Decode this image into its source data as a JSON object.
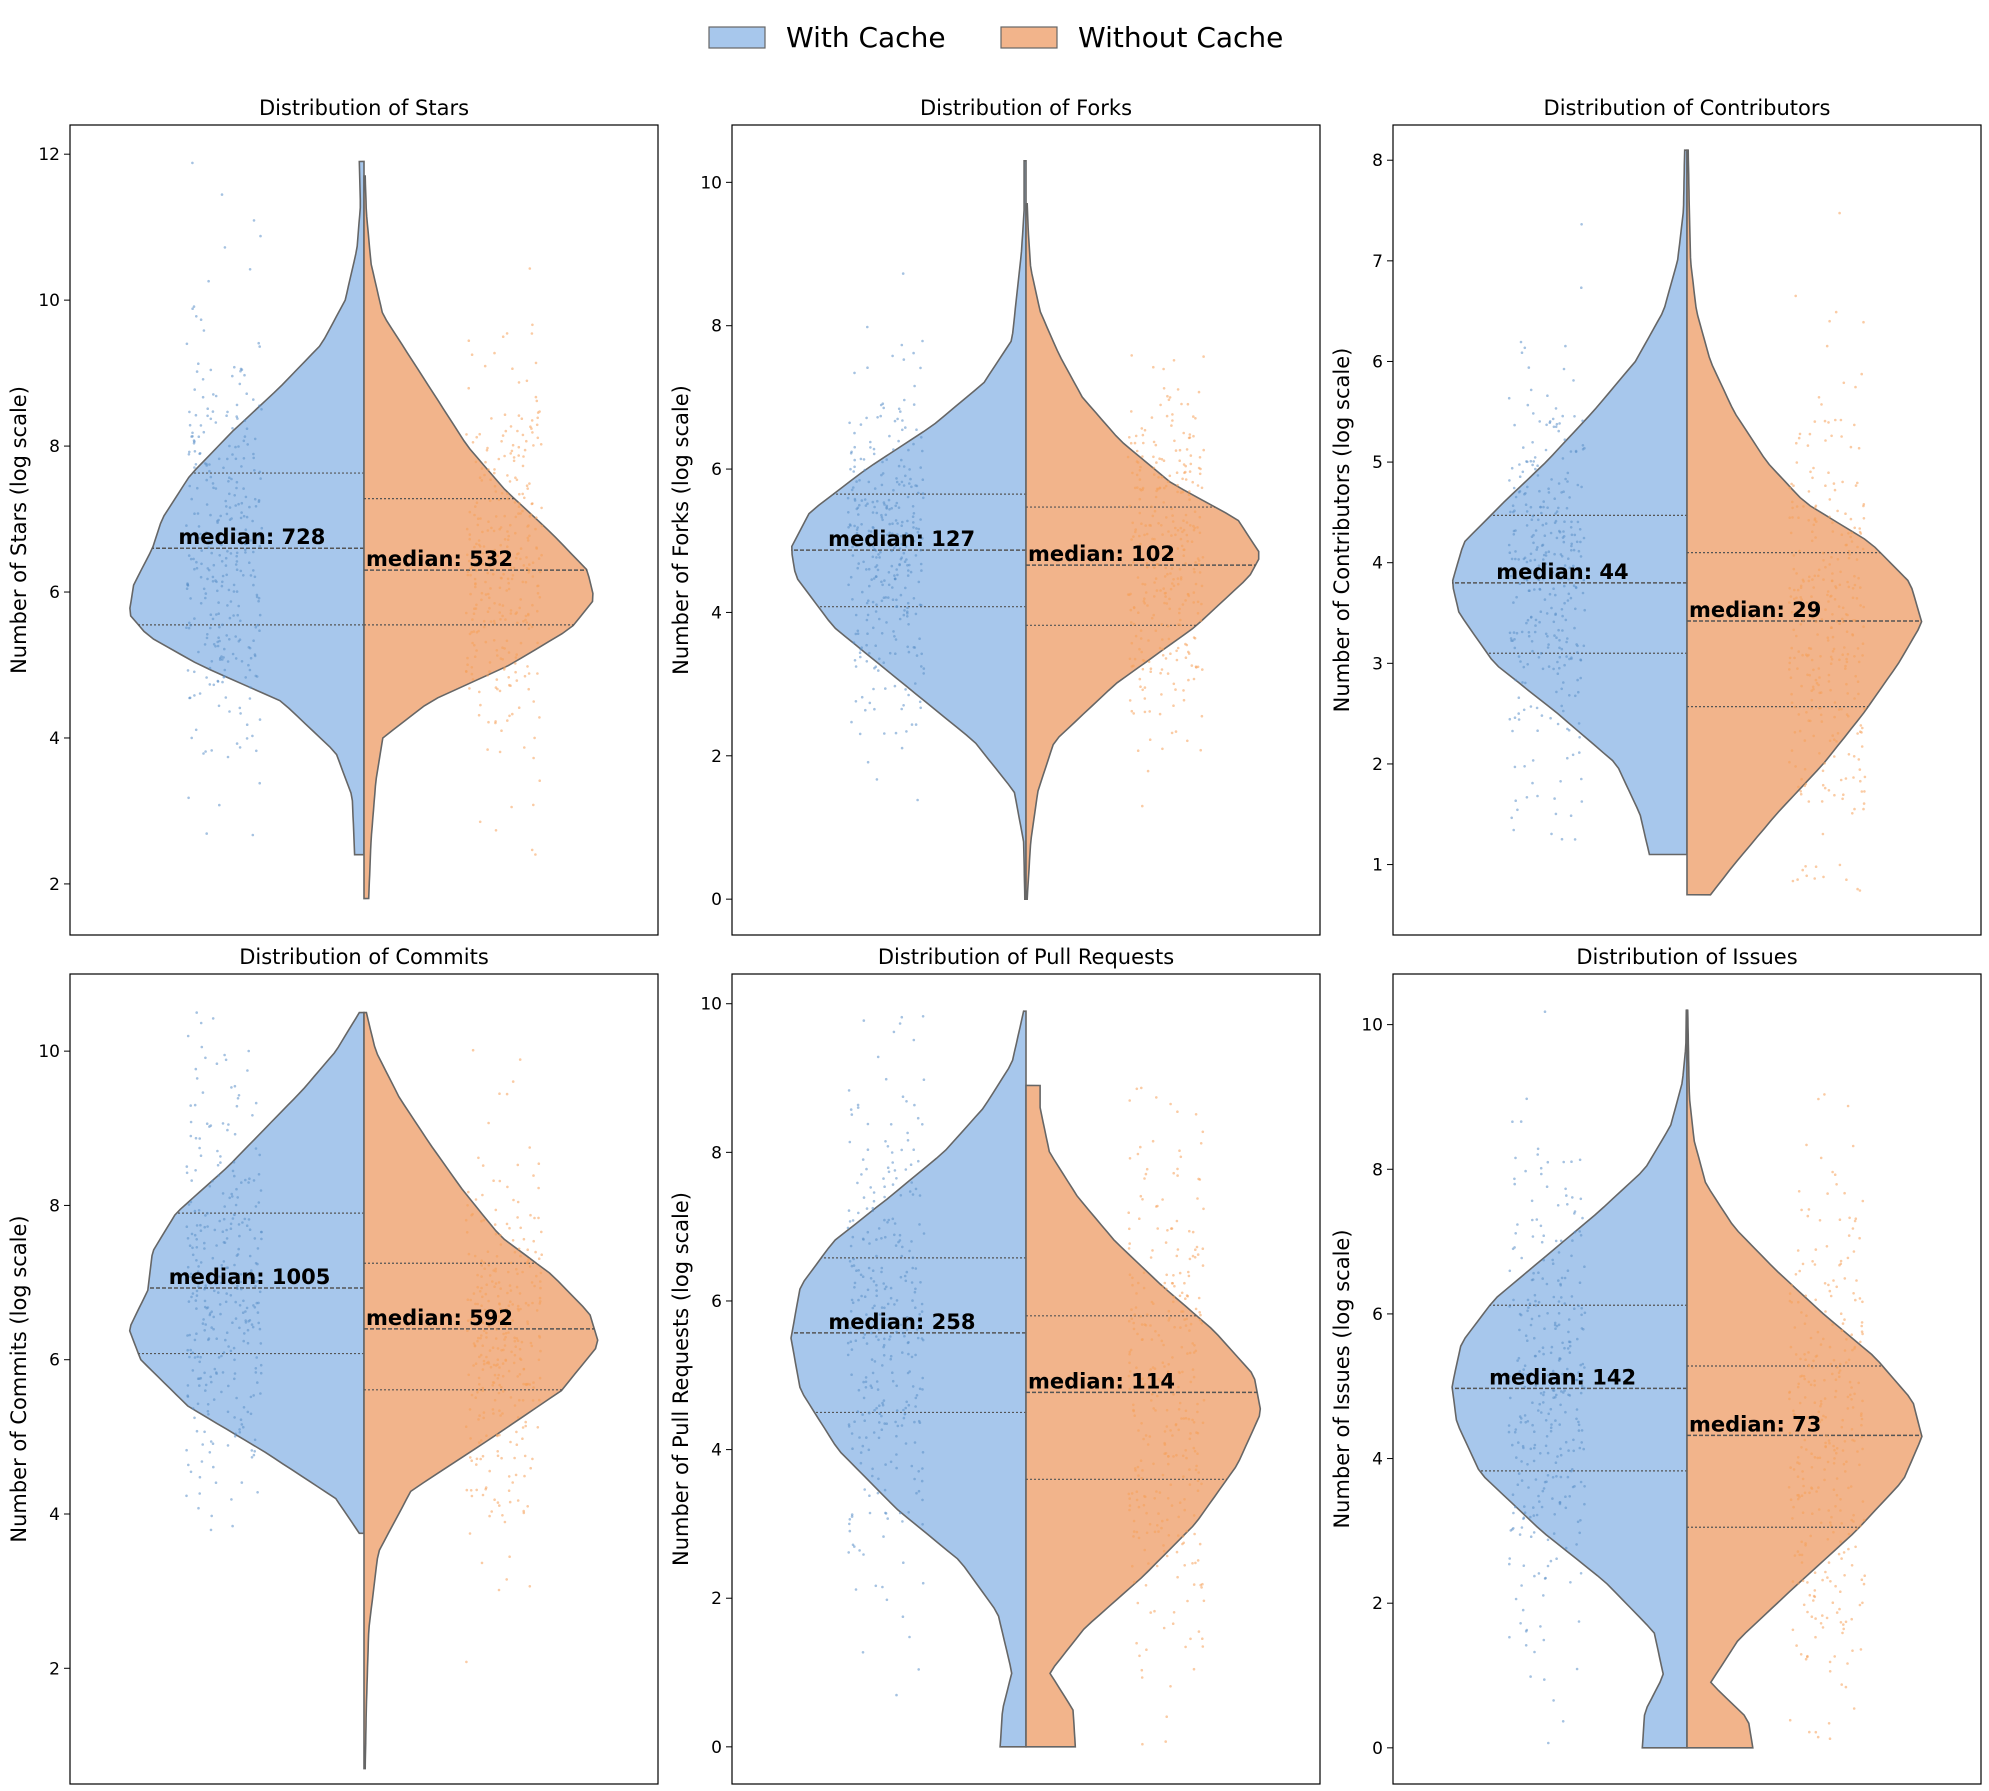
{
  "legend": {
    "items": [
      {
        "label": "With Cache",
        "color": "#a7c7ec"
      },
      {
        "label": "Without Cache",
        "color": "#f2b48b"
      }
    ],
    "placement": "top-center"
  },
  "chart_data": [
    {
      "type": "violin",
      "title": "Distribution of Stars",
      "ylabel": "Number of Stars (log scale)",
      "ylim": [
        1.3,
        12.4
      ],
      "yticks": [
        2,
        4,
        6,
        8,
        10,
        12
      ],
      "grid": false,
      "series": [
        {
          "name": "With Cache",
          "label": "median: 728",
          "min": 2.4,
          "max": 11.9,
          "q1": 5.55,
          "median": 6.6,
          "q3": 7.63,
          "density": [
            [
              2.4,
              0.04
            ],
            [
              3.2,
              0.05
            ],
            [
              3.8,
              0.12
            ],
            [
              4.5,
              0.35
            ],
            [
              5.0,
              0.7
            ],
            [
              5.4,
              0.92
            ],
            [
              5.7,
              1.0
            ],
            [
              6.1,
              0.98
            ],
            [
              6.6,
              0.9
            ],
            [
              7.0,
              0.86
            ],
            [
              7.6,
              0.74
            ],
            [
              8.2,
              0.56
            ],
            [
              8.8,
              0.36
            ],
            [
              9.4,
              0.18
            ],
            [
              10.0,
              0.08
            ],
            [
              10.7,
              0.03
            ],
            [
              11.3,
              0.015
            ],
            [
              11.9,
              0.02
            ]
          ]
        },
        {
          "name": "Without Cache",
          "label": "median: 532",
          "min": 1.8,
          "max": 11.7,
          "q1": 5.55,
          "median": 6.3,
          "q3": 7.28,
          "density": [
            [
              1.8,
              0.02
            ],
            [
              2.6,
              0.03
            ],
            [
              3.4,
              0.05
            ],
            [
              4.0,
              0.08
            ],
            [
              4.5,
              0.28
            ],
            [
              5.0,
              0.62
            ],
            [
              5.5,
              0.88
            ],
            [
              5.9,
              0.98
            ],
            [
              6.3,
              0.95
            ],
            [
              6.8,
              0.8
            ],
            [
              7.4,
              0.6
            ],
            [
              8.0,
              0.44
            ],
            [
              8.6,
              0.32
            ],
            [
              9.2,
              0.2
            ],
            [
              9.8,
              0.08
            ],
            [
              10.5,
              0.03
            ],
            [
              11.2,
              0.01
            ],
            [
              11.7,
              0.005
            ]
          ]
        }
      ]
    },
    {
      "type": "violin",
      "title": "Distribution of Forks",
      "ylabel": "Number of Forks (log scale)",
      "ylim": [
        -0.5,
        10.8
      ],
      "yticks": [
        0,
        2,
        4,
        6,
        8,
        10
      ],
      "grid": false,
      "series": [
        {
          "name": "With Cache",
          "label": "median: 127",
          "min": 0,
          "max": 10.3,
          "q1": 4.08,
          "median": 4.87,
          "q3": 5.65,
          "density": [
            [
              0,
              0.005
            ],
            [
              0.8,
              0.01
            ],
            [
              1.5,
              0.05
            ],
            [
              2.2,
              0.22
            ],
            [
              3.0,
              0.52
            ],
            [
              3.8,
              0.82
            ],
            [
              4.5,
              0.98
            ],
            [
              4.9,
              1.0
            ],
            [
              5.4,
              0.92
            ],
            [
              6.0,
              0.68
            ],
            [
              6.6,
              0.4
            ],
            [
              7.2,
              0.18
            ],
            [
              7.8,
              0.06
            ],
            [
              8.4,
              0.04
            ],
            [
              9.0,
              0.02
            ],
            [
              9.6,
              0.008
            ],
            [
              10.3,
              0.008
            ]
          ]
        },
        {
          "name": "Without Cache",
          "label": "median: 102",
          "min": 0,
          "max": 9.7,
          "q1": 3.82,
          "median": 4.66,
          "q3": 5.47,
          "density": [
            [
              0,
              0.005
            ],
            [
              0.8,
              0.02
            ],
            [
              1.5,
              0.05
            ],
            [
              2.2,
              0.12
            ],
            [
              3.0,
              0.38
            ],
            [
              3.8,
              0.72
            ],
            [
              4.5,
              0.95
            ],
            [
              4.8,
              1.0
            ],
            [
              5.3,
              0.9
            ],
            [
              5.8,
              0.62
            ],
            [
              6.4,
              0.4
            ],
            [
              7.0,
              0.24
            ],
            [
              7.6,
              0.14
            ],
            [
              8.2,
              0.06
            ],
            [
              8.8,
              0.02
            ],
            [
              9.3,
              0.01
            ],
            [
              9.7,
              0.005
            ]
          ]
        }
      ]
    },
    {
      "type": "violin",
      "title": "Distribution of Contributors",
      "ylabel": "Number of Contributors (log scale)",
      "ylim": [
        0.3,
        8.35
      ],
      "yticks": [
        1,
        2,
        3,
        4,
        5,
        6,
        7,
        8
      ],
      "grid": false,
      "series": [
        {
          "name": "With Cache",
          "label": "median: 44",
          "min": 1.1,
          "max": 8.1,
          "q1": 3.1,
          "median": 3.8,
          "q3": 4.47,
          "density": [
            [
              1.1,
              0.16
            ],
            [
              1.5,
              0.2
            ],
            [
              2.0,
              0.3
            ],
            [
              2.5,
              0.55
            ],
            [
              3.0,
              0.82
            ],
            [
              3.5,
              0.97
            ],
            [
              3.8,
              1.0
            ],
            [
              4.2,
              0.95
            ],
            [
              4.6,
              0.78
            ],
            [
              5.0,
              0.6
            ],
            [
              5.5,
              0.4
            ],
            [
              6.0,
              0.22
            ],
            [
              6.5,
              0.1
            ],
            [
              7.0,
              0.04
            ],
            [
              7.5,
              0.015
            ],
            [
              8.1,
              0.01
            ]
          ]
        },
        {
          "name": "Without Cache",
          "label": "median: 29",
          "min": 0.7,
          "max": 8.1,
          "q1": 2.57,
          "median": 3.42,
          "q3": 4.1,
          "density": [
            [
              0.7,
              0.1
            ],
            [
              1.0,
              0.2
            ],
            [
              1.5,
              0.38
            ],
            [
              2.0,
              0.58
            ],
            [
              2.5,
              0.75
            ],
            [
              3.0,
              0.9
            ],
            [
              3.4,
              1.0
            ],
            [
              3.8,
              0.95
            ],
            [
              4.2,
              0.78
            ],
            [
              4.6,
              0.5
            ],
            [
              5.0,
              0.34
            ],
            [
              5.5,
              0.2
            ],
            [
              6.0,
              0.1
            ],
            [
              6.5,
              0.04
            ],
            [
              7.0,
              0.015
            ],
            [
              7.5,
              0.01
            ],
            [
              8.1,
              0.005
            ]
          ]
        }
      ]
    },
    {
      "type": "violin",
      "title": "Distribution of Commits",
      "ylabel": "Number of Commits (log scale)",
      "ylim": [
        0.5,
        11.0
      ],
      "yticks": [
        2,
        4,
        6,
        8,
        10
      ],
      "grid": false,
      "series": [
        {
          "name": "With Cache",
          "label": "median: 1005",
          "min": 3.75,
          "max": 10.5,
          "q1": 6.08,
          "median": 6.93,
          "q3": 7.9,
          "density": [
            [
              3.75,
              0.02
            ],
            [
              4.2,
              0.12
            ],
            [
              4.8,
              0.42
            ],
            [
              5.4,
              0.75
            ],
            [
              6.0,
              0.95
            ],
            [
              6.4,
              1.0
            ],
            [
              6.9,
              0.92
            ],
            [
              7.4,
              0.9
            ],
            [
              7.9,
              0.8
            ],
            [
              8.5,
              0.58
            ],
            [
              9.0,
              0.42
            ],
            [
              9.5,
              0.26
            ],
            [
              10.0,
              0.12
            ],
            [
              10.5,
              0.02
            ]
          ]
        },
        {
          "name": "Without Cache",
          "label": "median: 592",
          "min": 0.7,
          "max": 10.5,
          "q1": 5.61,
          "median": 6.4,
          "q3": 7.25,
          "density": [
            [
              0.7,
              0.005
            ],
            [
              1.5,
              0.01
            ],
            [
              2.5,
              0.02
            ],
            [
              3.5,
              0.06
            ],
            [
              4.3,
              0.2
            ],
            [
              5.0,
              0.55
            ],
            [
              5.6,
              0.84
            ],
            [
              6.2,
              1.0
            ],
            [
              6.6,
              0.96
            ],
            [
              7.1,
              0.8
            ],
            [
              7.6,
              0.58
            ],
            [
              8.2,
              0.42
            ],
            [
              8.8,
              0.28
            ],
            [
              9.4,
              0.15
            ],
            [
              10.0,
              0.05
            ],
            [
              10.5,
              0.01
            ]
          ]
        }
      ]
    },
    {
      "type": "violin",
      "title": "Distribution of Pull Requests",
      "ylabel": "Number of Pull Requests (log scale)",
      "ylim": [
        -0.5,
        10.4
      ],
      "yticks": [
        0,
        2,
        4,
        6,
        8,
        10
      ],
      "grid": false,
      "series": [
        {
          "name": "With Cache",
          "label": "median: 258",
          "min": 0,
          "max": 9.9,
          "q1": 4.5,
          "median": 5.57,
          "q3": 6.58,
          "density": [
            [
              0,
              0.11
            ],
            [
              0.5,
              0.1
            ],
            [
              1.0,
              0.06
            ],
            [
              1.8,
              0.12
            ],
            [
              2.5,
              0.28
            ],
            [
              3.2,
              0.55
            ],
            [
              4.0,
              0.8
            ],
            [
              4.8,
              0.96
            ],
            [
              5.5,
              1.0
            ],
            [
              6.2,
              0.96
            ],
            [
              6.8,
              0.82
            ],
            [
              7.4,
              0.58
            ],
            [
              8.0,
              0.35
            ],
            [
              8.6,
              0.18
            ],
            [
              9.2,
              0.06
            ],
            [
              9.9,
              0.01
            ]
          ]
        },
        {
          "name": "Without Cache",
          "label": "median: 114",
          "min": 0,
          "max": 8.9,
          "q1": 3.6,
          "median": 4.77,
          "q3": 5.8,
          "density": [
            [
              0,
              0.21
            ],
            [
              0.5,
              0.2
            ],
            [
              1.0,
              0.1
            ],
            [
              1.6,
              0.25
            ],
            [
              2.3,
              0.5
            ],
            [
              3.0,
              0.72
            ],
            [
              3.8,
              0.9
            ],
            [
              4.5,
              1.0
            ],
            [
              5.0,
              0.97
            ],
            [
              5.6,
              0.8
            ],
            [
              6.2,
              0.58
            ],
            [
              6.8,
              0.38
            ],
            [
              7.4,
              0.22
            ],
            [
              8.0,
              0.1
            ],
            [
              8.6,
              0.06
            ],
            [
              8.9,
              0.06
            ]
          ]
        }
      ]
    },
    {
      "type": "violin",
      "title": "Distribution of Issues",
      "ylabel": "Number of Issues (log scale)",
      "ylim": [
        -0.5,
        10.7
      ],
      "yticks": [
        0,
        2,
        4,
        6,
        8,
        10
      ],
      "grid": false,
      "series": [
        {
          "name": "With Cache",
          "label": "median: 142",
          "min": 0,
          "max": 10.2,
          "q1": 3.83,
          "median": 4.97,
          "q3": 6.12,
          "density": [
            [
              0,
              0.19
            ],
            [
              0.5,
              0.18
            ],
            [
              1.0,
              0.1
            ],
            [
              1.6,
              0.14
            ],
            [
              2.3,
              0.35
            ],
            [
              3.0,
              0.62
            ],
            [
              3.8,
              0.88
            ],
            [
              4.5,
              0.98
            ],
            [
              5.0,
              1.0
            ],
            [
              5.6,
              0.96
            ],
            [
              6.2,
              0.82
            ],
            [
              6.8,
              0.6
            ],
            [
              7.4,
              0.38
            ],
            [
              8.0,
              0.18
            ],
            [
              8.6,
              0.07
            ],
            [
              9.2,
              0.02
            ],
            [
              9.7,
              0.005
            ],
            [
              10.2,
              0.003
            ]
          ]
        },
        {
          "name": "Without Cache",
          "label": "median: 73",
          "min": 0,
          "max": 10.2,
          "q1": 3.05,
          "median": 4.32,
          "q3": 5.28,
          "density": [
            [
              0,
              0.28
            ],
            [
              0.4,
              0.26
            ],
            [
              0.9,
              0.1
            ],
            [
              1.5,
              0.22
            ],
            [
              2.2,
              0.45
            ],
            [
              3.0,
              0.72
            ],
            [
              3.7,
              0.92
            ],
            [
              4.3,
              1.0
            ],
            [
              4.8,
              0.96
            ],
            [
              5.4,
              0.8
            ],
            [
              6.0,
              0.58
            ],
            [
              6.6,
              0.38
            ],
            [
              7.2,
              0.2
            ],
            [
              7.8,
              0.08
            ],
            [
              8.4,
              0.03
            ],
            [
              9.0,
              0.01
            ],
            [
              10.2,
              0.003
            ]
          ]
        }
      ]
    }
  ]
}
